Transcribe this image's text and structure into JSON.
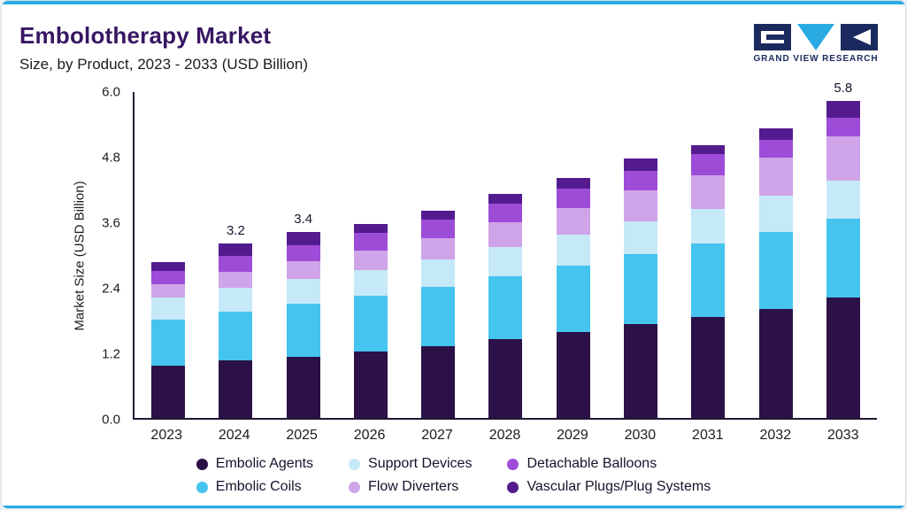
{
  "page": {
    "title": "Embolotherapy Market",
    "subtitle": "Size, by Product, 2023 - 2033 (USD Billion)",
    "logo_text": "GRAND VIEW RESEARCH",
    "accent_color": "#29ABE2"
  },
  "chart_data": {
    "type": "bar",
    "stacked": true,
    "title": "Embolotherapy Market Size, by Product, 2023 - 2033 (USD Billion)",
    "xlabel": "",
    "ylabel": "Market Size (USD Billion)",
    "ylim": [
      0,
      6.0
    ],
    "yticks": [
      "6.0",
      "4.8",
      "3.6",
      "2.4",
      "1.2",
      "0.0"
    ],
    "grid": false,
    "legend_position": "bottom",
    "categories": [
      "2023",
      "2024",
      "2025",
      "2026",
      "2027",
      "2028",
      "2029",
      "2030",
      "2031",
      "2032",
      "2033"
    ],
    "bar_total_labels": [
      "",
      "3.2",
      "3.4",
      "",
      "",
      "",
      "",
      "",
      "",
      "",
      "5.8"
    ],
    "series": [
      {
        "name": "Embolic Agents",
        "color": "#2B1147",
        "values": [
          0.95,
          1.05,
          1.12,
          1.22,
          1.32,
          1.45,
          1.57,
          1.72,
          1.85,
          2.0,
          2.2
        ]
      },
      {
        "name": "Embolic Coils",
        "color": "#45C4F0",
        "values": [
          0.85,
          0.9,
          0.97,
          1.02,
          1.08,
          1.15,
          1.22,
          1.28,
          1.35,
          1.4,
          1.45
        ]
      },
      {
        "name": "Support Devices",
        "color": "#C6E9F8",
        "values": [
          0.4,
          0.43,
          0.45,
          0.47,
          0.5,
          0.53,
          0.56,
          0.6,
          0.63,
          0.67,
          0.7
        ]
      },
      {
        "name": "Flow Diverters",
        "color": "#CFA4E8",
        "values": [
          0.25,
          0.3,
          0.33,
          0.36,
          0.4,
          0.45,
          0.5,
          0.56,
          0.62,
          0.7,
          0.8
        ]
      },
      {
        "name": "Detachable Balloons",
        "color": "#9D4CD8",
        "values": [
          0.25,
          0.28,
          0.3,
          0.32,
          0.33,
          0.34,
          0.35,
          0.37,
          0.38,
          0.33,
          0.35
        ]
      },
      {
        "name": "Vascular Plugs/Plug Systems",
        "color": "#541B8F",
        "values": [
          0.15,
          0.24,
          0.23,
          0.16,
          0.17,
          0.18,
          0.2,
          0.22,
          0.17,
          0.2,
          0.3
        ]
      }
    ],
    "legend_order": [
      "Embolic Agents",
      "Support Devices",
      "Detachable Balloons",
      "Embolic Coils",
      "Flow Diverters",
      "Vascular Plugs/Plug Systems"
    ]
  }
}
